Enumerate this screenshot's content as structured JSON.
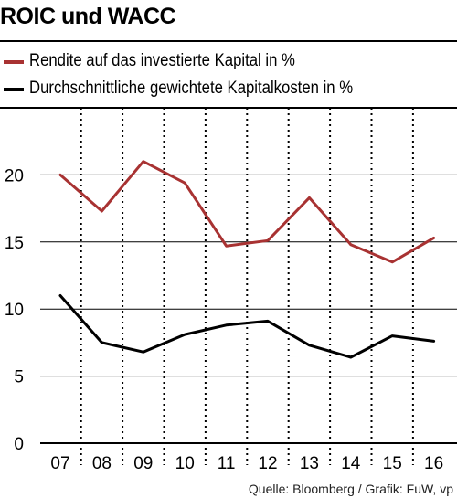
{
  "title": "ROIC und WACC",
  "legend": [
    {
      "label": "Rendite auf das investierte Kapital in %",
      "color": "#a83232"
    },
    {
      "label": "Durchschnittliche gewichtete Kapitalkosten in %",
      "color": "#000000"
    }
  ],
  "source": "Quelle: Bloomberg / Grafik: FuW, vp",
  "chart_data": {
    "type": "line",
    "title": "ROIC und WACC",
    "categories": [
      "07",
      "08",
      "09",
      "10",
      "11",
      "12",
      "13",
      "14",
      "15",
      "16"
    ],
    "series": [
      {
        "name": "Rendite auf das investierte Kapital in %",
        "color": "#a83232",
        "values": [
          20.0,
          17.3,
          21.0,
          19.4,
          14.7,
          15.1,
          18.3,
          14.8,
          13.5,
          15.3
        ]
      },
      {
        "name": "Durchschnittliche gewichtete Kapitalkosten in %",
        "color": "#000000",
        "values": [
          11.0,
          7.5,
          6.8,
          8.1,
          8.8,
          9.1,
          7.3,
          6.4,
          8.0,
          7.6
        ]
      }
    ],
    "ylim": [
      0,
      25
    ],
    "yticks": [
      0,
      5,
      10,
      15,
      20
    ],
    "xlabel": "",
    "ylabel": "",
    "grid": true,
    "legend_position": "top"
  }
}
